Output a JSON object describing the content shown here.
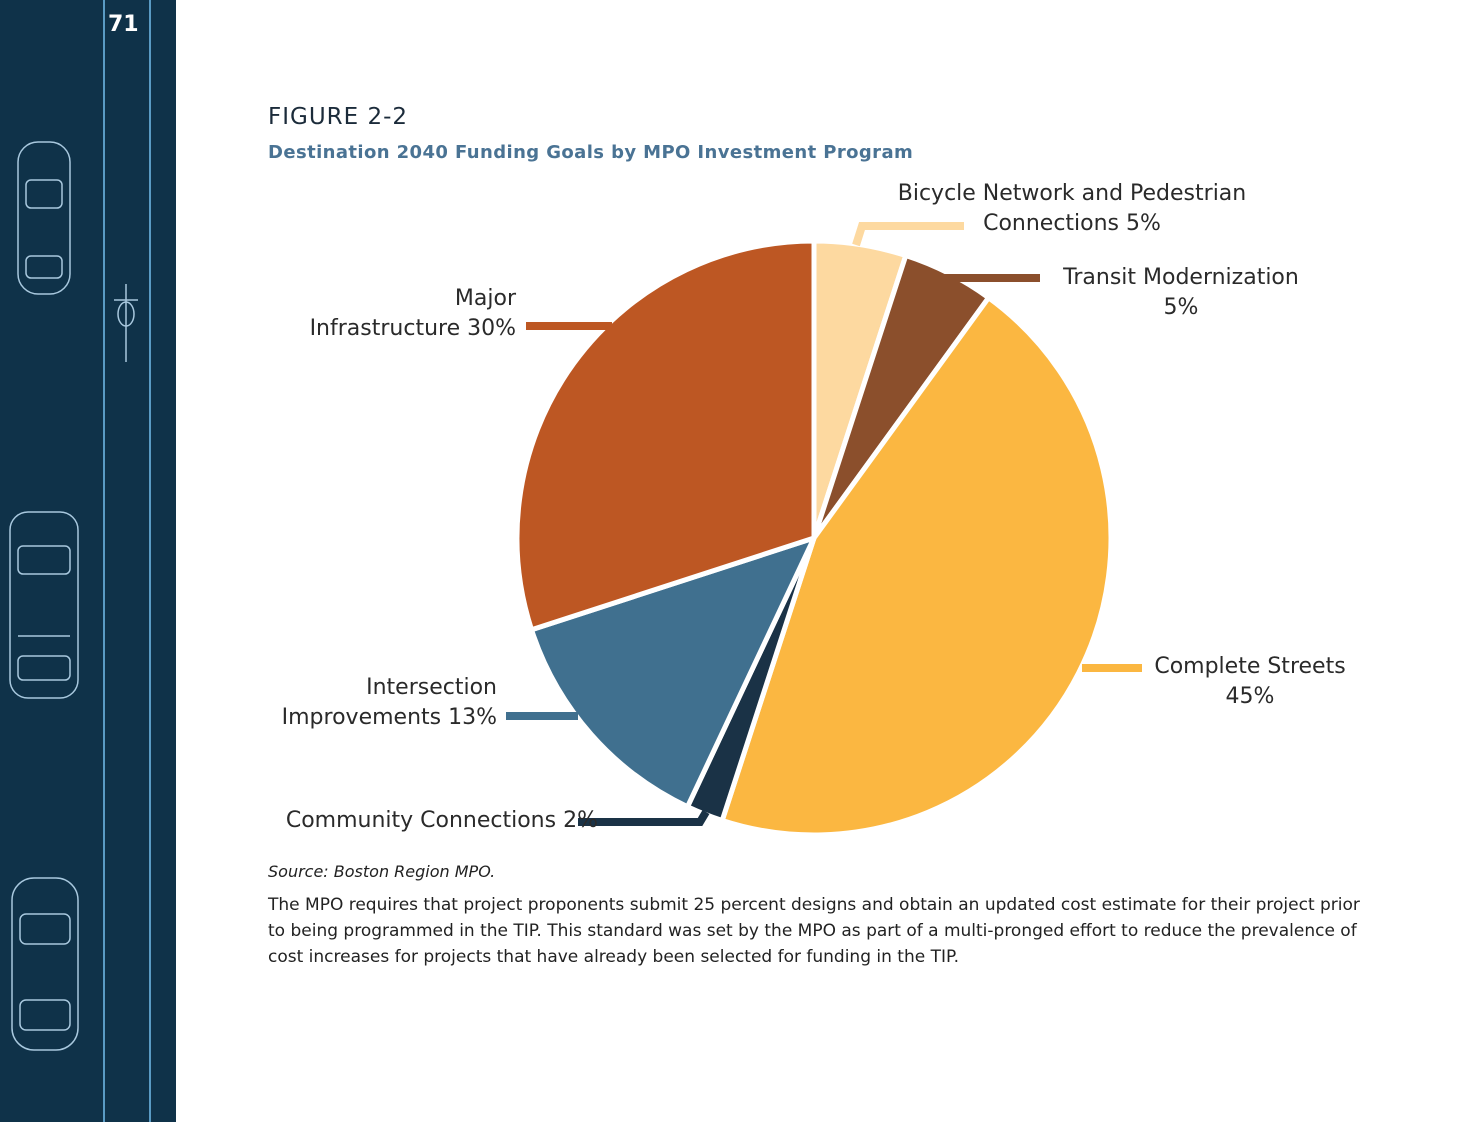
{
  "page": {
    "number": "71"
  },
  "figure": {
    "label": "FIGURE 2-2",
    "title": "Destination 2040 Funding Goals by MPO Investment Program"
  },
  "chart_data": {
    "type": "pie",
    "unit": "%",
    "start": "12 o'clock",
    "direction": "clockwise",
    "slices": [
      {
        "label_lines": [
          "Bicycle Network and Pedestrian",
          "Connections 5%"
        ],
        "value": 5,
        "color": "#fdd9a0"
      },
      {
        "label_lines": [
          "Transit Modernization",
          "5%"
        ],
        "value": 5,
        "color": "#8b4f2c"
      },
      {
        "label_lines": [
          "Complete Streets",
          "45%"
        ],
        "value": 45,
        "color": "#fbb741"
      },
      {
        "label_lines": [
          "Community Connections  2%"
        ],
        "value": 2,
        "color": "#1a3246"
      },
      {
        "label_lines": [
          "Intersection",
          "Improvements 13%"
        ],
        "value": 13,
        "color": "#40708f"
      },
      {
        "label_lines": [
          "Major",
          "Infrastructure 30%"
        ],
        "value": 30,
        "color": "#bd5723"
      }
    ]
  },
  "source": "Source: Boston Region MPO.",
  "body_text": "The MPO requires that project proponents submit 25 percent designs and obtain an updated cost estimate for their project prior to being programmed in the TIP. This standard was set by the MPO as part of a multi-pronged effort to reduce the prevalence of cost increases for projects that have already been selected for funding in the TIP."
}
